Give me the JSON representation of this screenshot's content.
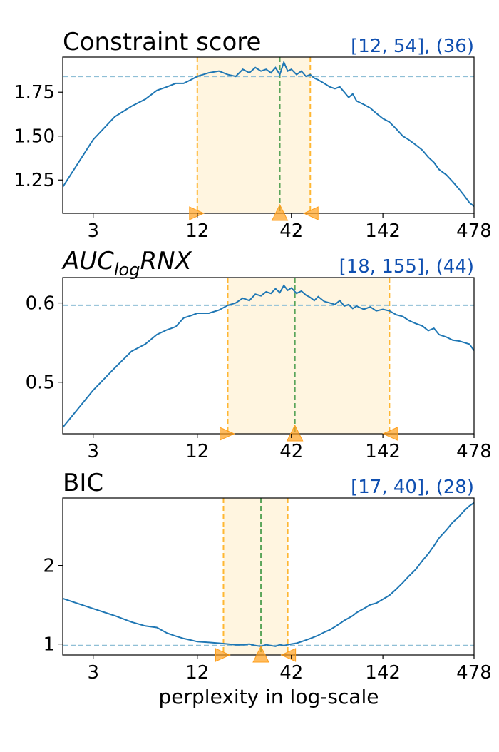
{
  "figure": {
    "xlabel": "perplexity in log-scale",
    "colors": {
      "line": "#1f77b4",
      "span_fill": "#fff5e0",
      "span_edge": "#ffb733",
      "best_line": "#5aa55a",
      "ref_line": "#8fbfd6",
      "annotation": "#0f4fb0",
      "marker": "#ff9f1c"
    }
  },
  "chart_data": [
    {
      "type": "line",
      "title": "Constraint score",
      "title_style": "plain",
      "title_parts": null,
      "annotation": "[12, 54], (36)",
      "xscale": "log",
      "xlim": [
        2,
        478
      ],
      "ylim": [
        1.06,
        1.95
      ],
      "x_ticks": [
        3,
        12,
        42,
        142,
        478
      ],
      "x_tick_labels": [
        "3",
        "12",
        "42",
        "142",
        "478"
      ],
      "y_ticks": [
        1.25,
        1.5,
        1.75
      ],
      "y_tick_labels": [
        "1.25",
        "1.50",
        "1.75"
      ],
      "ref_y": 1.84,
      "range": [
        12,
        54
      ],
      "best": 36,
      "series": [
        {
          "x": [
            2,
            3,
            4,
            5,
            6,
            7,
            8,
            9,
            10,
            11,
            12,
            14,
            16,
            18,
            20,
            22,
            24,
            26,
            28,
            30,
            32,
            34,
            36,
            38,
            40,
            42,
            45,
            48,
            51,
            54,
            57,
            60,
            65,
            70,
            75,
            80,
            85,
            90,
            95,
            100,
            110,
            120,
            130,
            142,
            155,
            170,
            185,
            200,
            220,
            240,
            260,
            280,
            300,
            330,
            360,
            390,
            420,
            450,
            478
          ],
          "values": [
            1.21,
            1.48,
            1.61,
            1.67,
            1.71,
            1.76,
            1.78,
            1.8,
            1.8,
            1.82,
            1.84,
            1.86,
            1.87,
            1.85,
            1.84,
            1.88,
            1.86,
            1.89,
            1.87,
            1.88,
            1.86,
            1.89,
            1.85,
            1.92,
            1.87,
            1.88,
            1.85,
            1.87,
            1.84,
            1.85,
            1.83,
            1.82,
            1.8,
            1.78,
            1.77,
            1.78,
            1.75,
            1.72,
            1.74,
            1.7,
            1.68,
            1.66,
            1.63,
            1.6,
            1.58,
            1.54,
            1.5,
            1.48,
            1.45,
            1.42,
            1.38,
            1.35,
            1.31,
            1.28,
            1.24,
            1.2,
            1.16,
            1.12,
            1.1
          ]
        }
      ]
    },
    {
      "type": "line",
      "title": "",
      "title_style": "math",
      "title_parts": {
        "main": "AUC",
        "sub": "log",
        "rest": "RNX"
      },
      "annotation": "[18, 155], (44)",
      "xscale": "log",
      "xlim": [
        2,
        478
      ],
      "ylim": [
        0.435,
        0.632
      ],
      "x_ticks": [
        3,
        12,
        42,
        142,
        478
      ],
      "x_tick_labels": [
        "3",
        "12",
        "42",
        "142",
        "478"
      ],
      "y_ticks": [
        0.5,
        0.6
      ],
      "y_tick_labels": [
        "0.5",
        "0.6"
      ],
      "ref_y": 0.597,
      "range": [
        18,
        155
      ],
      "best": 44,
      "series": [
        {
          "x": [
            2,
            3,
            4,
            5,
            6,
            7,
            8,
            9,
            10,
            11,
            12,
            14,
            16,
            18,
            20,
            22,
            24,
            26,
            28,
            30,
            32,
            34,
            36,
            38,
            40,
            42,
            45,
            48,
            51,
            54,
            57,
            60,
            65,
            70,
            75,
            80,
            85,
            90,
            95,
            100,
            110,
            120,
            130,
            142,
            155,
            170,
            185,
            200,
            220,
            240,
            260,
            280,
            300,
            330,
            360,
            390,
            420,
            450,
            478
          ],
          "values": [
            0.443,
            0.49,
            0.518,
            0.539,
            0.548,
            0.56,
            0.566,
            0.57,
            0.581,
            0.584,
            0.587,
            0.587,
            0.591,
            0.597,
            0.6,
            0.606,
            0.603,
            0.611,
            0.609,
            0.614,
            0.612,
            0.618,
            0.613,
            0.622,
            0.616,
            0.619,
            0.612,
            0.615,
            0.61,
            0.607,
            0.603,
            0.608,
            0.602,
            0.6,
            0.598,
            0.603,
            0.596,
            0.598,
            0.593,
            0.596,
            0.592,
            0.595,
            0.59,
            0.592,
            0.59,
            0.585,
            0.583,
            0.578,
            0.574,
            0.571,
            0.565,
            0.568,
            0.56,
            0.557,
            0.553,
            0.552,
            0.55,
            0.548,
            0.54
          ]
        }
      ]
    },
    {
      "type": "line",
      "title": "BIC",
      "title_style": "plain",
      "title_parts": null,
      "annotation": "[17, 40], (28)",
      "xscale": "log",
      "xlim": [
        2,
        478
      ],
      "ylim": [
        0.86,
        2.86
      ],
      "x_ticks": [
        3,
        12,
        42,
        142,
        478
      ],
      "x_tick_labels": [
        "3",
        "12",
        "42",
        "142",
        "478"
      ],
      "y_ticks": [
        1,
        2
      ],
      "y_tick_labels": [
        "1",
        "2"
      ],
      "ref_y": 0.98,
      "range": [
        17,
        40
      ],
      "best": 28,
      "series": [
        {
          "x": [
            2,
            3,
            4,
            5,
            6,
            7,
            8,
            9,
            10,
            11,
            12,
            14,
            16,
            18,
            20,
            22,
            24,
            26,
            28,
            30,
            32,
            34,
            36,
            38,
            40,
            42,
            45,
            48,
            51,
            54,
            57,
            60,
            65,
            70,
            75,
            80,
            85,
            90,
            95,
            100,
            110,
            120,
            130,
            142,
            155,
            170,
            185,
            200,
            220,
            240,
            260,
            280,
            300,
            330,
            360,
            390,
            420,
            450,
            478
          ],
          "values": [
            1.58,
            1.45,
            1.36,
            1.28,
            1.23,
            1.21,
            1.14,
            1.1,
            1.07,
            1.05,
            1.03,
            1.02,
            1.01,
            1.0,
            0.99,
            0.99,
            1.0,
            0.98,
            0.97,
            0.99,
            0.98,
            0.97,
            0.99,
            0.98,
            0.99,
            1.0,
            1.01,
            1.03,
            1.05,
            1.07,
            1.09,
            1.11,
            1.15,
            1.18,
            1.22,
            1.26,
            1.3,
            1.33,
            1.36,
            1.4,
            1.45,
            1.5,
            1.52,
            1.57,
            1.62,
            1.7,
            1.78,
            1.86,
            1.95,
            2.06,
            2.15,
            2.25,
            2.35,
            2.45,
            2.55,
            2.62,
            2.7,
            2.76,
            2.8
          ]
        }
      ]
    }
  ]
}
